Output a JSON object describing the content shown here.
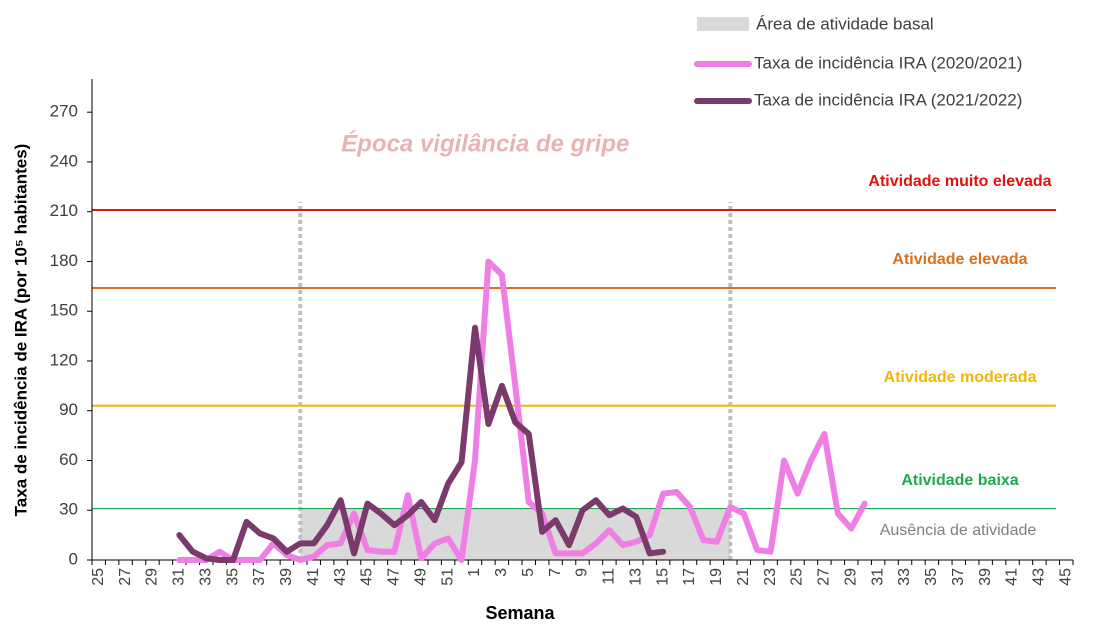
{
  "chart_data": {
    "type": "line",
    "x_label": "Semana",
    "y_label": "Taxa de incidência de IRA  (por 10⁵ habitantes)",
    "annotation": "Época vigilância de gripe",
    "categories": [
      25,
      null,
      27,
      null,
      29,
      null,
      31,
      null,
      33,
      null,
      35,
      null,
      37,
      null,
      39,
      null,
      41,
      null,
      43,
      null,
      45,
      null,
      47,
      null,
      49,
      null,
      51,
      null,
      1,
      null,
      3,
      null,
      5,
      null,
      7,
      null,
      9,
      null,
      11,
      null,
      13,
      null,
      15,
      null,
      17,
      null,
      19,
      null,
      21,
      null,
      23,
      null,
      25,
      null,
      27,
      null,
      29,
      null,
      31,
      null,
      33,
      null,
      35,
      null,
      37,
      null,
      39,
      null,
      41,
      null,
      43,
      null,
      45
    ],
    "series": [
      {
        "name": "Taxa de incidência IRA (2020/2021)",
        "color": "#ef7fe4",
        "values": [
          null,
          null,
          null,
          null,
          null,
          null,
          0,
          0,
          0,
          5,
          0,
          0,
          0,
          10,
          3,
          0,
          2,
          9,
          10,
          28,
          6,
          5,
          5,
          39,
          1,
          10,
          13,
          0,
          60,
          180,
          172,
          105,
          35,
          28,
          4,
          4,
          4,
          10,
          18,
          9,
          11,
          15,
          40,
          41,
          32,
          12,
          11,
          32,
          28,
          6,
          5,
          60,
          40,
          60,
          76,
          28,
          19,
          34,
          null,
          null,
          null,
          null,
          null,
          null,
          null,
          null,
          null,
          null,
          null,
          null,
          null,
          null,
          null
        ]
      },
      {
        "name": "Taxa de incidência IRA (2021/2022)",
        "color": "#7a3a6b",
        "values": [
          null,
          null,
          null,
          null,
          null,
          null,
          15,
          5,
          1,
          0,
          0,
          23,
          16,
          13,
          5,
          10,
          10,
          21,
          36,
          4,
          34,
          28,
          21,
          27,
          35,
          24,
          46,
          59,
          140,
          82,
          105,
          83,
          76,
          17,
          24,
          9,
          30,
          36,
          27,
          31,
          26,
          4,
          5,
          null,
          null,
          null,
          null,
          null,
          null,
          null,
          null,
          null,
          null,
          null,
          null,
          null,
          null,
          null,
          null,
          null,
          null,
          null,
          null,
          null,
          null,
          null,
          null,
          null,
          null,
          null,
          null,
          null,
          null
        ]
      }
    ],
    "baseline_area": {
      "name": "Área de atividade basal",
      "color": "#d9d9d9",
      "value": 31,
      "start": 40,
      "end": 20,
      "note": "Ausência de atividade"
    },
    "thresholds": [
      {
        "label": "Atividade muito elevada",
        "value": 211,
        "color": "#e3120b"
      },
      {
        "label": "Atividade elevada",
        "value": 164,
        "color": "#d8701f"
      },
      {
        "label": "Atividade moderada",
        "value": 93,
        "color": "#f2b705"
      },
      {
        "label": "Atividade baixa",
        "value": 31,
        "color": "#1fa84f"
      }
    ],
    "ylim": [
      0,
      290
    ],
    "yticks": [
      0,
      30,
      60,
      90,
      120,
      150,
      180,
      210,
      240,
      270
    ]
  }
}
